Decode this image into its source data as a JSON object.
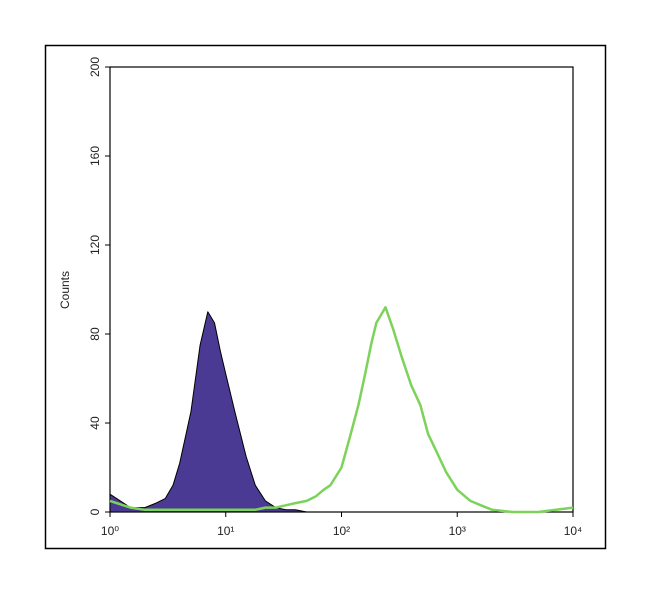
{
  "chart_data": {
    "type": "histogram-overlay",
    "y_label": "Counts",
    "log_x": true,
    "xlim": [
      1,
      10000
    ],
    "xticks": [
      {
        "value": 1,
        "label": "10⁰"
      },
      {
        "value": 10,
        "label": "10¹"
      },
      {
        "value": 100,
        "label": "10²"
      },
      {
        "value": 1000,
        "label": "10³"
      },
      {
        "value": 10000,
        "label": "10⁴"
      }
    ],
    "ylim": [
      0,
      200
    ],
    "yticks": [
      0,
      40,
      80,
      120,
      160,
      200
    ],
    "x": [
      1,
      1.5,
      2,
      2.5,
      3,
      3.5,
      4,
      5,
      6,
      7,
      8,
      9,
      10,
      12,
      15,
      18,
      22,
      27,
      33,
      40,
      50,
      60,
      70,
      80,
      100,
      120,
      140,
      160,
      180,
      200,
      240,
      280,
      330,
      400,
      480,
      560,
      650,
      800,
      1000,
      1300,
      1600,
      2000,
      3000,
      5000,
      10000
    ],
    "series": [
      {
        "color": "#4b3a94",
        "fill": true,
        "values": [
          8,
          2,
          2,
          4,
          6,
          12,
          22,
          45,
          75,
          90,
          85,
          72,
          62,
          45,
          25,
          12,
          5,
          2,
          1,
          1,
          0,
          0,
          0,
          0,
          0,
          0,
          0,
          0,
          0,
          0,
          0,
          0,
          0,
          0,
          0,
          0,
          0,
          0,
          0,
          0,
          0,
          0,
          0,
          0,
          0
        ]
      },
      {
        "color": "#7dd35a",
        "fill": false,
        "values": [
          5,
          2,
          1,
          1,
          1,
          1,
          1,
          1,
          1,
          1,
          1,
          1,
          1,
          1,
          1,
          1,
          2,
          2,
          3,
          4,
          5,
          7,
          10,
          12,
          20,
          35,
          48,
          62,
          75,
          85,
          92,
          82,
          70,
          57,
          48,
          35,
          28,
          18,
          10,
          5,
          3,
          1,
          0,
          0,
          2
        ]
      }
    ]
  }
}
